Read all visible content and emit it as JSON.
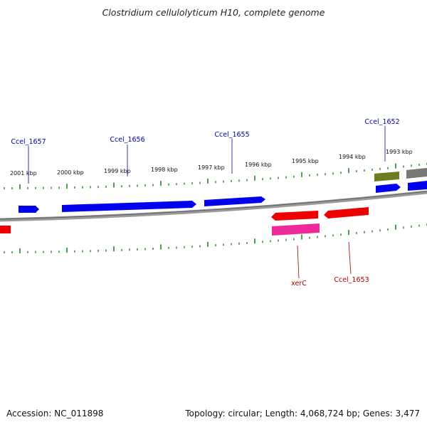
{
  "title": "Clostridium cellulolyticum H10, complete genome",
  "footer": {
    "accession": "Accession: NC_011898",
    "summary": "Topology: circular; Length: 4,068,724 bp; Genes: 3,477"
  },
  "colors": {
    "forward_gene": "#0000ee",
    "reverse_gene": "#ee0000",
    "rna_gene": "#ee2a9a",
    "misc_feature_olive": "#6b7d1e",
    "misc_feature_gray": "#777777",
    "backbone": "#8a8a8a",
    "ticks": "#1f8a1f",
    "forward_label": "#0000aa",
    "reverse_label": "#aa0000"
  },
  "kbp_labels": [
    "2001 kbp",
    "2000 kbp",
    "1999 kbp",
    "1998 kbp",
    "1997 kbp",
    "1996 kbp",
    "1995 kbp",
    "1994 kbp",
    "1993 kbp"
  ],
  "forward_gene_labels": [
    "Ccel_1657",
    "Ccel_1656",
    "Ccel_1655",
    "Ccel_1652"
  ],
  "reverse_gene_labels": [
    "xerC",
    "Ccel_1653"
  ]
}
